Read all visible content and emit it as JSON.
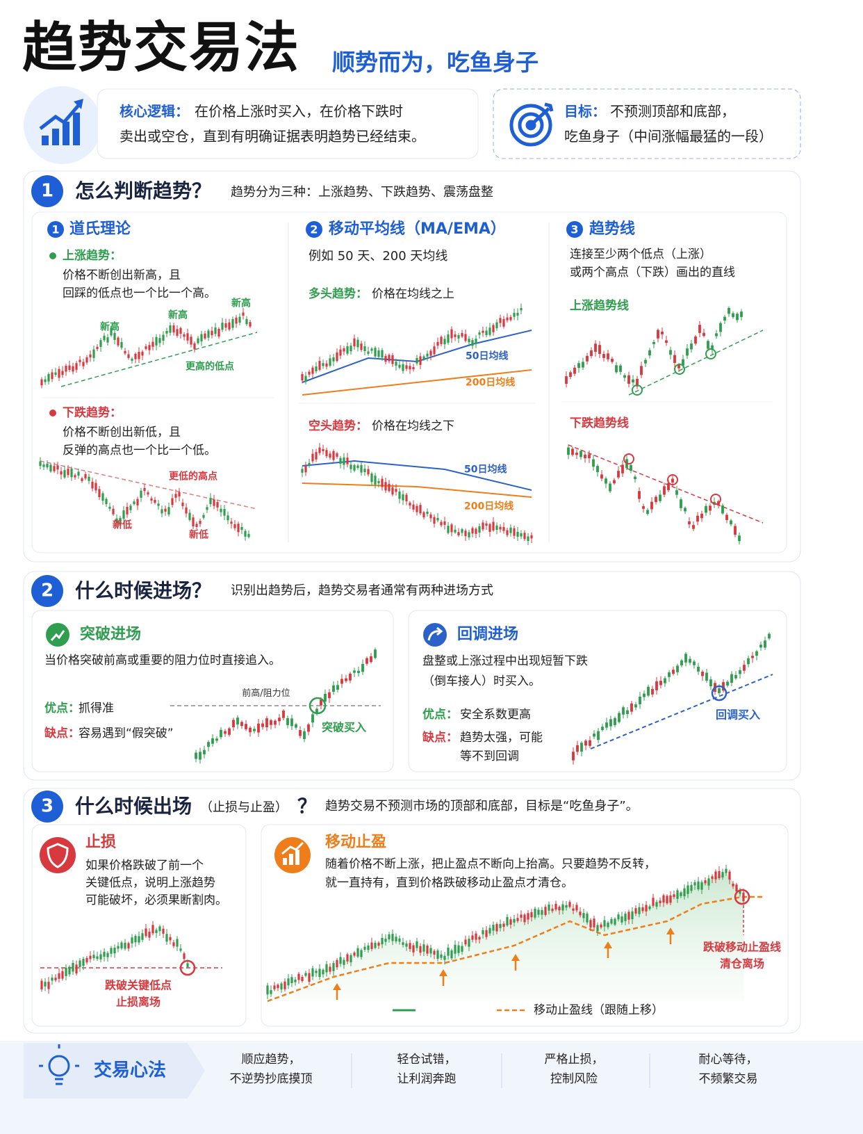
{
  "header": {
    "title": "趋势交易法",
    "subtitle": "顺势而为，吃鱼身子"
  },
  "intro": {
    "core": {
      "label": "核心逻辑：",
      "lines": [
        "在价格上涨时买入，在价格下跌时",
        "卖出或空仓，直到有明确证据表明趋势已经结束。"
      ]
    },
    "goal": {
      "label": "目标：",
      "lines": [
        "不预测顶部和底部，",
        "吃鱼身子（中间涨幅最猛的一段）"
      ]
    }
  },
  "sections": [
    {
      "number": "1",
      "title": "怎么判断趋势？",
      "subtitle": "趋势分为三种：上涨趋势、下跌趋势、震荡盘整",
      "columns": [
        {
          "number": "1",
          "title": "道氏理论",
          "up": {
            "label": "上涨趋势：",
            "lines": [
              "价格不断创出新高，且",
              "回踩的低点也一个比一个高。"
            ],
            "notes": [
              "新高",
              "新高",
              "新高",
              "更高的低点"
            ]
          },
          "down": {
            "label": "下跌趋势：",
            "lines": [
              "价格不断创出新低，且",
              "反弹的高点也一个比一个低。"
            ],
            "notes": [
              "更低的高点",
              "新低",
              "新低"
            ]
          }
        },
        {
          "number": "2",
          "title": "移动平均线（MA/EMA）",
          "example": "例如 50 天、200 天均线",
          "bull": {
            "label": "多头趋势：",
            "text": "价格在均线之上",
            "ma_short": "50日均线",
            "ma_long": "200日均线"
          },
          "bear": {
            "label": "空头趋势：",
            "text": "价格在均线之下",
            "ma_short": "50日均线",
            "ma_long": "200日均线"
          }
        },
        {
          "number": "3",
          "title": "趋势线",
          "lines": [
            "连接至少两个低点（上涨）",
            "或两个高点（下跌）画出的直线"
          ],
          "up_label": "上涨趋势线",
          "down_label": "下跌趋势线"
        }
      ]
    },
    {
      "number": "2",
      "title": "什么时候进场？",
      "subtitle": "识别出趋势后，趋势交易者通常有两种进场方式",
      "cards": [
        {
          "title": "突破进场",
          "lines": [
            "当价格突破前高或重要的阻力位时直接追入。"
          ],
          "pros": {
            "label": "优点：",
            "lines": [
              "抓得准"
            ]
          },
          "cons": {
            "label": "缺点：",
            "lines": [
              "容易遇到“假突破”"
            ]
          },
          "notes": [
            "前高/阻力位",
            "突破买入"
          ]
        },
        {
          "title": "回调进场",
          "lines": [
            "盘整或上涨过程中出现短暂下跌",
            "（倒车接人）时买入。"
          ],
          "pros": {
            "label": "优点：",
            "lines": [
              "安全系数更高"
            ]
          },
          "cons": {
            "label": "缺点：",
            "lines": [
              "趋势太强，可能",
              "等不到回调"
            ]
          },
          "notes": [
            "回调买入"
          ]
        }
      ]
    },
    {
      "number": "3",
      "title": "什么时候出场",
      "title_note": "（止损与止盈）",
      "title_end": "？",
      "subtitle": "趋势交易不预测市场的顶部和底部，目标是“吃鱼身子”。",
      "cards": [
        {
          "title": "止损",
          "lines": [
            "如果价格跌破了前一个",
            "关键低点，说明上涨趋势",
            "可能破坏，必须果断割肉。"
          ],
          "notes": [
            "跌破关键低点",
            "止损离场"
          ]
        },
        {
          "title": "移动止盈",
          "lines": [
            "随着价格不断上涨，把止盈点不断向上抬高。只要趋势不反转，",
            "就一直持有，直到价格跌破移动止盈点才清仓。"
          ],
          "notes": [
            "跌破移动止盈线",
            "清仓离场"
          ],
          "legend": "移动止盈线（跟随上移）"
        }
      ]
    }
  ],
  "footer": {
    "title": "交易心法",
    "items": [
      [
        "顺应趋势，",
        "不逆势抄底摸顶"
      ],
      [
        "轻仓试错，",
        "让利润奔跑"
      ],
      [
        "严格止损，",
        "控制风险"
      ],
      [
        "耐心等待，",
        "不频繁交易"
      ]
    ]
  }
}
